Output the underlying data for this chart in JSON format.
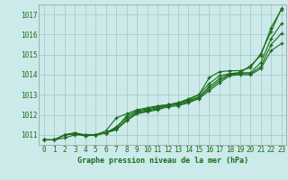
{
  "background_color": "#cceaea",
  "grid_color": "#aacccc",
  "line_color": "#1a6b1a",
  "xlabel": "Graphe pression niveau de la mer (hPa)",
  "ylim": [
    1010.5,
    1017.5
  ],
  "xlim": [
    -0.5,
    23.5
  ],
  "yticks": [
    1011,
    1012,
    1013,
    1014,
    1015,
    1016,
    1017
  ],
  "xticks": [
    0,
    1,
    2,
    3,
    4,
    5,
    6,
    7,
    8,
    9,
    10,
    11,
    12,
    13,
    14,
    15,
    16,
    17,
    18,
    19,
    20,
    21,
    22,
    23
  ],
  "series": [
    [
      1010.75,
      1010.75,
      1010.85,
      1011.0,
      1011.0,
      1011.0,
      1011.2,
      1011.85,
      1012.05,
      1012.25,
      1012.35,
      1012.45,
      1012.5,
      1012.6,
      1012.8,
      1013.0,
      1013.85,
      1014.15,
      1014.2,
      1014.2,
      1014.35,
      1015.05,
      1016.15,
      1017.3
    ],
    [
      1010.75,
      1010.75,
      1011.0,
      1011.05,
      1011.0,
      1011.0,
      1011.1,
      1011.35,
      1011.95,
      1012.2,
      1012.3,
      1012.4,
      1012.5,
      1012.6,
      1012.75,
      1013.0,
      1013.55,
      1013.95,
      1014.05,
      1014.1,
      1014.45,
      1014.95,
      1016.35,
      1017.25
    ],
    [
      1010.75,
      1010.75,
      1011.0,
      1011.1,
      1011.0,
      1011.0,
      1011.1,
      1011.4,
      1011.85,
      1012.15,
      1012.25,
      1012.35,
      1012.5,
      1012.55,
      1012.7,
      1012.9,
      1013.4,
      1013.8,
      1014.05,
      1014.1,
      1014.1,
      1014.6,
      1015.8,
      1016.55
    ],
    [
      1010.75,
      1010.75,
      1011.0,
      1011.1,
      1010.95,
      1011.0,
      1011.1,
      1011.3,
      1011.75,
      1012.1,
      1012.2,
      1012.3,
      1012.45,
      1012.5,
      1012.65,
      1012.85,
      1013.3,
      1013.7,
      1014.0,
      1014.05,
      1014.05,
      1014.4,
      1015.5,
      1016.05
    ],
    [
      1010.75,
      1010.75,
      1011.0,
      1011.05,
      1010.95,
      1011.0,
      1011.1,
      1011.25,
      1011.7,
      1012.05,
      1012.15,
      1012.25,
      1012.4,
      1012.45,
      1012.6,
      1012.8,
      1013.2,
      1013.6,
      1013.95,
      1014.0,
      1014.0,
      1014.3,
      1015.2,
      1015.55
    ]
  ]
}
